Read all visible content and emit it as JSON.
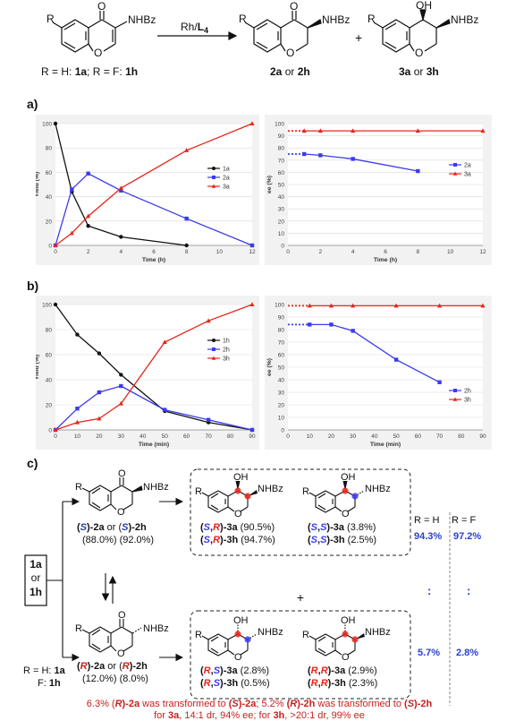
{
  "scheme": {
    "reactant_sub_r": "R",
    "reactant_oxo": "O",
    "reactant_amide": "NHBz",
    "ring_o": "O",
    "catalyst": "Rh/L4",
    "catalyst_main": "Rh/",
    "catalyst_l": "L",
    "catalyst_sub": "4",
    "r_def_prefix": "R = H: ",
    "r_def_1a": "1a",
    "r_def_mid": "; R = F: ",
    "r_def_1h": "1h",
    "plus": "+",
    "p2_r": "R",
    "p2_oxo": "O",
    "p2_amide": "NHBz",
    "p2_label_a": "2a",
    "p2_label_or": " or ",
    "p2_label_h": "2h",
    "p3_r": "R",
    "p3_oh": "OH",
    "p3_amide": "NHBz",
    "p3_label_a": "3a",
    "p3_label_or": " or ",
    "p3_label_h": "3h"
  },
  "panel_labels": {
    "a": "a)",
    "b": "b)",
    "c": "c)"
  },
  "chart_data": [
    {
      "type": "line",
      "panel": "a-left",
      "xlabel": "Time (h)",
      "ylabel": "Yield (%)",
      "xlim": [
        0,
        12
      ],
      "ylim": [
        0,
        100
      ],
      "xticks": [
        0,
        2,
        4,
        6,
        8,
        10,
        12
      ],
      "yticks": [
        0,
        20,
        40,
        60,
        80,
        100
      ],
      "legend_position": "right",
      "series": [
        {
          "name": "1a",
          "color": "#111111",
          "marker": "circle",
          "x": [
            0,
            1,
            2,
            4,
            8
          ],
          "y": [
            100,
            44,
            16,
            7,
            0
          ]
        },
        {
          "name": "2a",
          "color": "#3a3af0",
          "marker": "square",
          "x": [
            0,
            1,
            2,
            4,
            8,
            12
          ],
          "y": [
            0,
            46,
            59,
            45,
            22,
            0
          ]
        },
        {
          "name": "3a",
          "color": "#e8241b",
          "marker": "triangle",
          "x": [
            0,
            1,
            2,
            4,
            8,
            12
          ],
          "y": [
            0,
            10,
            24,
            47,
            78,
            100
          ]
        }
      ]
    },
    {
      "type": "line",
      "panel": "a-right",
      "xlabel": "Time (h)",
      "ylabel": "ee (%)",
      "xlim": [
        0,
        12
      ],
      "ylim": [
        0,
        100
      ],
      "xticks": [
        0,
        2,
        4,
        6,
        8,
        10,
        12
      ],
      "yticks": [
        0,
        10,
        20,
        30,
        40,
        50,
        60,
        70,
        80,
        90,
        100
      ],
      "legend_position": "right",
      "series": [
        {
          "name": "2a",
          "color": "#3a3af0",
          "marker": "square",
          "x": [
            1,
            2,
            4,
            8
          ],
          "y": [
            75,
            74,
            71,
            61
          ],
          "dotted_lead_from": 0
        },
        {
          "name": "3a",
          "color": "#e8241b",
          "marker": "triangle",
          "x": [
            1,
            2,
            4,
            8,
            12
          ],
          "y": [
            94,
            94,
            94,
            94,
            94
          ],
          "dotted_lead_from": 0
        }
      ]
    },
    {
      "type": "line",
      "panel": "b-left",
      "xlabel": "Time (min)",
      "ylabel": "Yield (%)",
      "xlim": [
        0,
        90
      ],
      "ylim": [
        0,
        100
      ],
      "xticks": [
        0,
        10,
        20,
        30,
        40,
        50,
        60,
        70,
        80,
        90
      ],
      "yticks": [
        0,
        20,
        40,
        60,
        80,
        100
      ],
      "legend_position": "right",
      "series": [
        {
          "name": "1h",
          "color": "#111111",
          "marker": "circle",
          "x": [
            0,
            10,
            20,
            30,
            50,
            70,
            90
          ],
          "y": [
            100,
            76,
            61,
            44,
            15,
            6,
            0
          ]
        },
        {
          "name": "2h",
          "color": "#3a3af0",
          "marker": "square",
          "x": [
            0,
            10,
            20,
            30,
            50,
            70,
            90
          ],
          "y": [
            0,
            17,
            30,
            35,
            16,
            8,
            0
          ]
        },
        {
          "name": "3h",
          "color": "#e8241b",
          "marker": "triangle",
          "x": [
            0,
            10,
            20,
            30,
            50,
            70,
            90
          ],
          "y": [
            0,
            6,
            9,
            21,
            70,
            87,
            100
          ]
        }
      ]
    },
    {
      "type": "line",
      "panel": "b-right",
      "xlabel": "Time (min)",
      "ylabel": "ee (%)",
      "xlim": [
        0,
        90
      ],
      "ylim": [
        0,
        100
      ],
      "xticks": [
        0,
        10,
        20,
        30,
        40,
        50,
        60,
        70,
        80,
        90
      ],
      "yticks": [
        0,
        10,
        20,
        30,
        40,
        50,
        60,
        70,
        80,
        90,
        100
      ],
      "legend_position": "right",
      "series": [
        {
          "name": "2h",
          "color": "#3a3af0",
          "marker": "square",
          "x": [
            10,
            20,
            30,
            50,
            70
          ],
          "y": [
            84,
            84,
            79,
            56,
            38
          ],
          "dotted_lead_from": 0
        },
        {
          "name": "3h",
          "color": "#e8241b",
          "marker": "triangle",
          "x": [
            10,
            20,
            30,
            50,
            70,
            90
          ],
          "y": [
            99,
            99,
            99,
            99,
            99,
            99
          ],
          "dotted_lead_from": 0
        }
      ]
    }
  ],
  "panel_c": {
    "start_box": [
      "1a",
      "or",
      "1h"
    ],
    "r_def": {
      "line1_prefix": "R = H: ",
      "line1_bold": "1a",
      "line2_prefix": "F: ",
      "line2_bold": "1h"
    },
    "top_ketone": {
      "r": "R",
      "oxo": "O",
      "amide": "NHBz",
      "ring_o": "O",
      "label": {
        "p1": "(",
        "s1": "S",
        "p2": ")-",
        "n1": "2a",
        "or": " or (",
        "s2": "S",
        "p3": ")-",
        "n2": "2h"
      },
      "yields": "(88.0%)  (92.0%)"
    },
    "bottom_ketone": {
      "r": "R",
      "oxo": "O",
      "amide": "NHBz",
      "ring_o": "O",
      "label": {
        "p1": "(",
        "s1": "R",
        "p2": ")-",
        "n1": "2a",
        "or": " or (",
        "s2": "R",
        "p3": ")-",
        "n2": "2h"
      },
      "yields": "(12.0%)  (8.0%)"
    },
    "top_products": [
      {
        "r": "R",
        "oh": "OH",
        "amide": "NHBz",
        "ring_o": "O",
        "lines": [
          {
            "c1": "S",
            "c2": "R",
            "name": "3a",
            "yield": "(90.5%)"
          },
          {
            "c1": "S",
            "c2": "R",
            "name": "3h",
            "yield": "(94.7%)"
          }
        ]
      },
      {
        "r": "R",
        "oh": "OH",
        "amide": "NHBz",
        "ring_o": "O",
        "lines": [
          {
            "c1": "S",
            "c2": "S",
            "name": "3a",
            "yield": "(3.8%)"
          },
          {
            "c1": "S",
            "c2": "S",
            "name": "3h",
            "yield": "(2.5%)"
          }
        ]
      }
    ],
    "bottom_products": [
      {
        "r": "R",
        "oh": "OH",
        "amide": "NHBz",
        "ring_o": "O",
        "lines": [
          {
            "c1": "R",
            "c2": "S",
            "name": "3a",
            "yield": "(2.8%)"
          },
          {
            "c1": "R",
            "c2": "S",
            "name": "3h",
            "yield": "(0.5%)"
          }
        ]
      },
      {
        "r": "R",
        "oh": "OH",
        "amide": "NHBz",
        "ring_o": "O",
        "lines": [
          {
            "c1": "R",
            "c2": "R",
            "name": "3a",
            "yield": "(2.9%)"
          },
          {
            "c1": "R",
            "c2": "R",
            "name": "3h",
            "yield": "(2.3%)"
          }
        ]
      }
    ],
    "plus": "+",
    "ratio_headers": {
      "h": "R = H",
      "f": "R = F"
    },
    "ratio_top": {
      "h": "94.3%",
      "f": "97.2%"
    },
    "ratio_bottom": {
      "h": "5.7%",
      "f": "2.8%"
    },
    "colon": ":",
    "footnote": {
      "line1_a": "6.3% (",
      "line1_a_cfg": "R",
      "line1_b": ")-2a",
      "line1_c": " was transformed to ",
      "line1_d": "(",
      "line1_d_cfg": "S",
      "line1_e": ")-2a",
      "line1_f": "; 5.2% ",
      "line1_g": "(",
      "line1_g_cfg": "R",
      "line1_h": ")-2h",
      "line1_i": " was transformed to ",
      "line1_j": "(",
      "line1_j_cfg": "S",
      "line1_k": ")-2h",
      "line2_a": "for ",
      "line2_b": "3a",
      "line2_c": ", 14:1 dr, 94% ee; for ",
      "line2_d": "3h",
      "line2_e": ", >20:1 dr, 99% ee"
    }
  },
  "colors": {
    "blue": "#3a3af0",
    "red": "#e8241b",
    "black": "#111111",
    "label_blue": "#1f3ca8",
    "label_red": "#c81e1e",
    "ratio_blue": "#2a3fd0"
  }
}
